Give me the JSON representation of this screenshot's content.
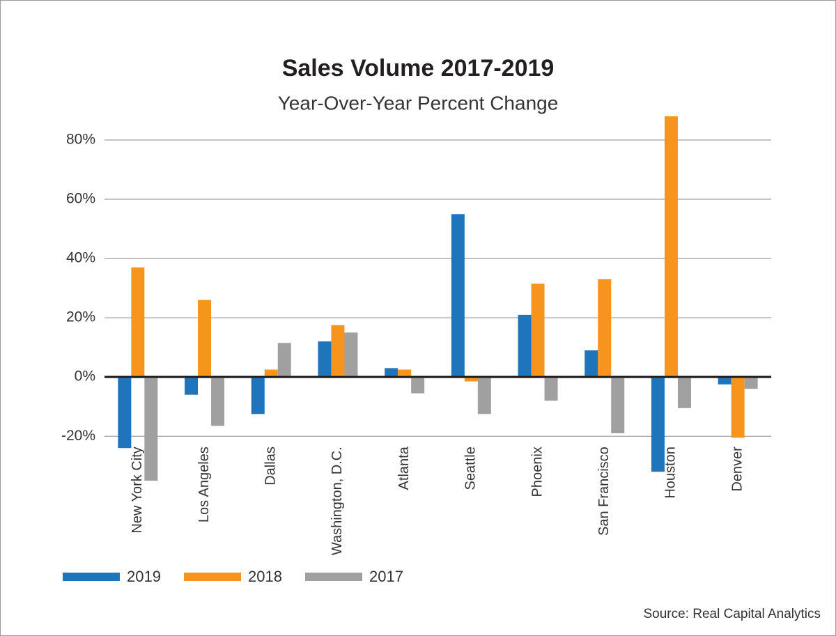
{
  "chart_data": {
    "type": "bar",
    "title": "Sales Volume 2017-2019",
    "subtitle": "Year-Over-Year Percent Change",
    "source": "Source: Real Capital Analytics",
    "categories": [
      "New York City",
      "Los Angeles",
      "Dallas",
      "Washington, D.C.",
      "Atlanta",
      "Seattle",
      "Phoenix",
      "San Francisco",
      "Houston",
      "Denver"
    ],
    "series": [
      {
        "name": "2019",
        "color": "#1f75bc",
        "values": [
          -24,
          -6,
          -12.5,
          12,
          3,
          55,
          21,
          9,
          -32,
          -2.5
        ]
      },
      {
        "name": "2018",
        "color": "#f7941d",
        "values": [
          37,
          26,
          2.5,
          17.5,
          2.5,
          -1.5,
          31.5,
          33,
          88,
          -20.5
        ]
      },
      {
        "name": "2017",
        "color": "#a0a0a0",
        "values": [
          -35,
          -16.5,
          11.5,
          15,
          -5.5,
          -12.5,
          -8,
          -19,
          -10.5,
          -4
        ]
      }
    ],
    "ylim": [
      -35,
      90
    ],
    "yticks": [
      {
        "value": -20,
        "label": "-20%"
      },
      {
        "value": 0,
        "label": "0%"
      },
      {
        "value": 20,
        "label": "20%"
      },
      {
        "value": 40,
        "label": "40%"
      },
      {
        "value": 60,
        "label": "60%"
      },
      {
        "value": 80,
        "label": "80%"
      }
    ],
    "grid": true,
    "legend": "bottom"
  }
}
